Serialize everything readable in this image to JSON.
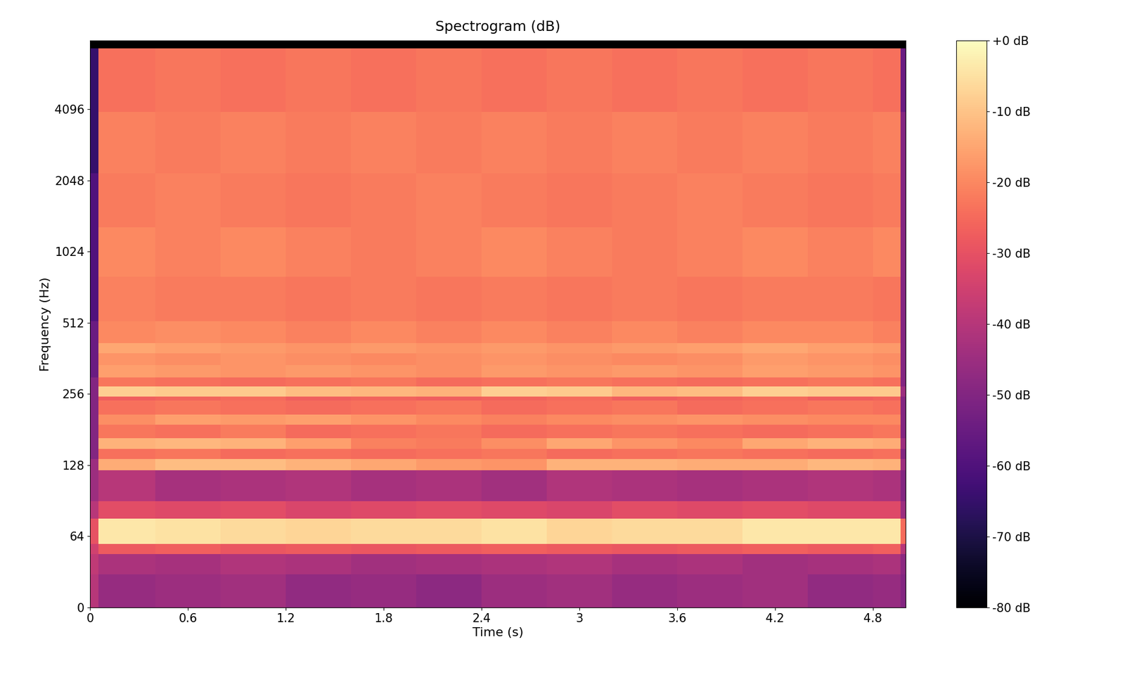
{
  "chart_data": {
    "type": "heatmap",
    "title": "Spectrogram (dB)",
    "x_label": "Time (s)",
    "y_label": "Frequency (Hz)",
    "color": "magma",
    "log": "y",
    "x": [
      0,
      0.05,
      0.4,
      0.8,
      1.2,
      1.6,
      2.0,
      2.4,
      2.8,
      3.2,
      3.6,
      4.0,
      4.4,
      4.8,
      4.97,
      5.0
    ],
    "y": [
      0,
      30,
      48,
      57,
      76,
      90,
      122,
      136,
      150,
      166,
      190,
      210,
      240,
      250,
      275,
      300,
      340,
      380,
      420,
      520,
      800,
      1300,
      2200,
      4000,
      7400
    ],
    "cells": [
      [
        -40,
        -46,
        -45,
        -44,
        -47,
        -46,
        -48,
        -45,
        -44,
        -46,
        -45,
        -44,
        -47,
        -46,
        -50
      ],
      [
        -38,
        -42,
        -43,
        -41,
        -42,
        -44,
        -43,
        -42,
        -41,
        -43,
        -42,
        -44,
        -43,
        -42,
        -48
      ],
      [
        -35,
        -28,
        -27,
        -29,
        -28,
        -29,
        -28,
        -27,
        -28,
        -29,
        -28,
        -27,
        -28,
        -27,
        -40
      ],
      [
        -30,
        -4,
        -5,
        -6,
        -7,
        -6,
        -6,
        -5,
        -7,
        -6,
        -6,
        -4,
        -4,
        -4,
        -25
      ],
      [
        -40,
        -31,
        -32,
        -31,
        -33,
        -32,
        -31,
        -32,
        -33,
        -31,
        -32,
        -31,
        -32,
        -32,
        -45
      ],
      [
        -45,
        -40,
        -43,
        -42,
        -41,
        -43,
        -42,
        -44,
        -41,
        -42,
        -43,
        -42,
        -41,
        -42,
        -50
      ],
      [
        -45,
        -14,
        -11,
        -11,
        -13,
        -15,
        -17,
        -18,
        -13,
        -13,
        -14,
        -14,
        -12,
        -13,
        -45
      ],
      [
        -50,
        -24,
        -23,
        -25,
        -24,
        -25,
        -24,
        -23,
        -25,
        -24,
        -23,
        -24,
        -25,
        -24,
        -50
      ],
      [
        -50,
        -13,
        -12,
        -13,
        -16,
        -21,
        -22,
        -19,
        -15,
        -18,
        -20,
        -15,
        -13,
        -14,
        -45
      ],
      [
        -50,
        -23,
        -24,
        -22,
        -25,
        -24,
        -23,
        -25,
        -24,
        -23,
        -24,
        -25,
        -24,
        -23,
        -50
      ],
      [
        -50,
        -19,
        -16,
        -17,
        -16,
        -18,
        -20,
        -21,
        -20,
        -19,
        -18,
        -19,
        -20,
        -20,
        -50
      ],
      [
        -50,
        -24,
        -23,
        -24,
        -25,
        -24,
        -23,
        -25,
        -24,
        -23,
        -25,
        -24,
        -23,
        -24,
        -50
      ],
      [
        -50,
        -27,
        -26,
        -25,
        -27,
        -26,
        -27,
        -26,
        -25,
        -27,
        -26,
        -25,
        -27,
        -26,
        -50
      ],
      [
        -50,
        -8,
        -9,
        -9,
        -11,
        -12,
        -13,
        -8,
        -9,
        -12,
        -11,
        -8,
        -9,
        -9,
        -45
      ],
      [
        -50,
        -23,
        -24,
        -25,
        -24,
        -23,
        -25,
        -24,
        -23,
        -24,
        -25,
        -24,
        -23,
        -24,
        -50
      ],
      [
        -55,
        -16,
        -17,
        -18,
        -17,
        -18,
        -19,
        -17,
        -18,
        -17,
        -18,
        -16,
        -17,
        -18,
        -50
      ],
      [
        -55,
        -18,
        -19,
        -18,
        -19,
        -20,
        -19,
        -18,
        -19,
        -20,
        -19,
        -17,
        -18,
        -19,
        -50
      ],
      [
        -55,
        -15,
        -16,
        -17,
        -18,
        -17,
        -18,
        -17,
        -18,
        -17,
        -16,
        -15,
        -16,
        -17,
        -50
      ],
      [
        -55,
        -20,
        -19,
        -20,
        -21,
        -20,
        -21,
        -20,
        -21,
        -20,
        -21,
        -20,
        -20,
        -21,
        -50
      ],
      [
        -60,
        -21,
        -22,
        -22,
        -23,
        -22,
        -23,
        -22,
        -23,
        -22,
        -23,
        -22,
        -22,
        -23,
        -50
      ],
      [
        -60,
        -20,
        -21,
        -20,
        -21,
        -22,
        -21,
        -20,
        -21,
        -22,
        -21,
        -20,
        -21,
        -20,
        -50
      ],
      [
        -60,
        -22,
        -21,
        -22,
        -23,
        -22,
        -21,
        -22,
        -23,
        -22,
        -21,
        -22,
        -23,
        -22,
        -50
      ],
      [
        -65,
        -21,
        -22,
        -21,
        -22,
        -21,
        -22,
        -21,
        -22,
        -21,
        -22,
        -21,
        -22,
        -21,
        -50
      ],
      [
        -65,
        -24,
        -23,
        -24,
        -23,
        -24,
        -23,
        -24,
        -23,
        -24,
        -23,
        -24,
        -23,
        -24,
        -55
      ]
    ],
    "xlim": [
      0,
      5.0
    ],
    "ylim": [
      0,
      8000
    ],
    "xticks": [
      0,
      0.6,
      1.2,
      1.8,
      2.4,
      3,
      3.6,
      4.2,
      4.8
    ],
    "yticks": [
      0,
      64,
      128,
      256,
      512,
      1024,
      2048,
      4096
    ],
    "colorbar": {
      "range": [
        -80,
        0
      ],
      "ticks": [
        {
          "value": 0,
          "label": "+0 dB"
        },
        {
          "value": -10,
          "label": "-10 dB"
        },
        {
          "value": -20,
          "label": "-20 dB"
        },
        {
          "value": -30,
          "label": "-30 dB"
        },
        {
          "value": -40,
          "label": "-40 dB"
        },
        {
          "value": -50,
          "label": "-50 dB"
        },
        {
          "value": -60,
          "label": "-60 dB"
        },
        {
          "value": -70,
          "label": "-70 dB"
        },
        {
          "value": -80,
          "label": "-80 dB"
        }
      ]
    }
  }
}
